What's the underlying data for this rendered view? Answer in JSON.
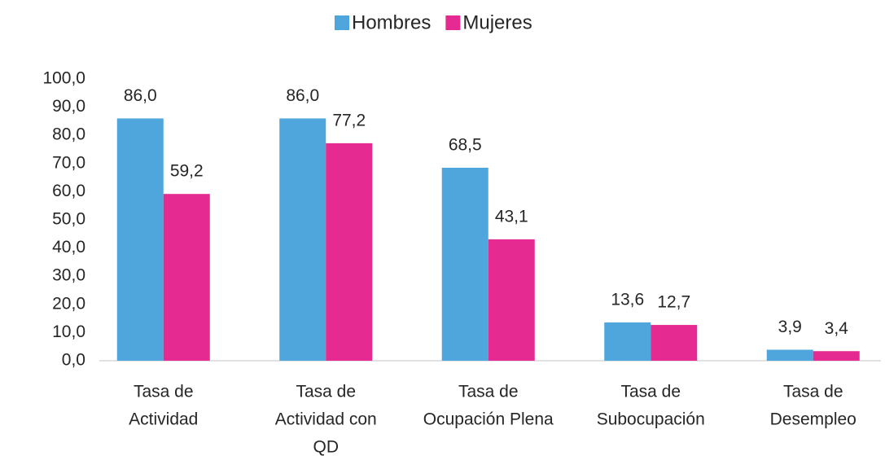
{
  "chart_data": {
    "type": "bar",
    "categories": [
      [
        "Tasa de",
        "Actividad"
      ],
      [
        "Tasa de",
        "Actividad con",
        "QD"
      ],
      [
        "Tasa de",
        "Ocupación Plena"
      ],
      [
        "Tasa de",
        "Subocupación"
      ],
      [
        "Tasa de",
        "Desempleo"
      ]
    ],
    "series": [
      {
        "name": "Hombres",
        "color": "#4EA6DC",
        "values": [
          86.0,
          86.0,
          68.5,
          13.6,
          3.9
        ],
        "value_labels": [
          "86,0",
          "86,0",
          "68,5",
          "13,6",
          "3,9"
        ]
      },
      {
        "name": "Mujeres",
        "color": "#E52A92",
        "values": [
          59.2,
          77.2,
          43.1,
          12.7,
          3.4
        ],
        "value_labels": [
          "59,2",
          "77,2",
          "43,1",
          "12,7",
          "3,4"
        ]
      }
    ],
    "ylim": [
      0,
      100
    ],
    "yticks": [
      {
        "value": 0,
        "label": "0,0"
      },
      {
        "value": 10,
        "label": "10,0"
      },
      {
        "value": 20,
        "label": "20,0"
      },
      {
        "value": 30,
        "label": "30,0"
      },
      {
        "value": 40,
        "label": "40,0"
      },
      {
        "value": 50,
        "label": "50,0"
      },
      {
        "value": 60,
        "label": "60,0"
      },
      {
        "value": 70,
        "label": "70,0"
      },
      {
        "value": 80,
        "label": "80,0"
      },
      {
        "value": 90,
        "label": "90,0"
      },
      {
        "value": 100,
        "label": "100,0"
      }
    ],
    "grid": false,
    "legend": "top"
  }
}
